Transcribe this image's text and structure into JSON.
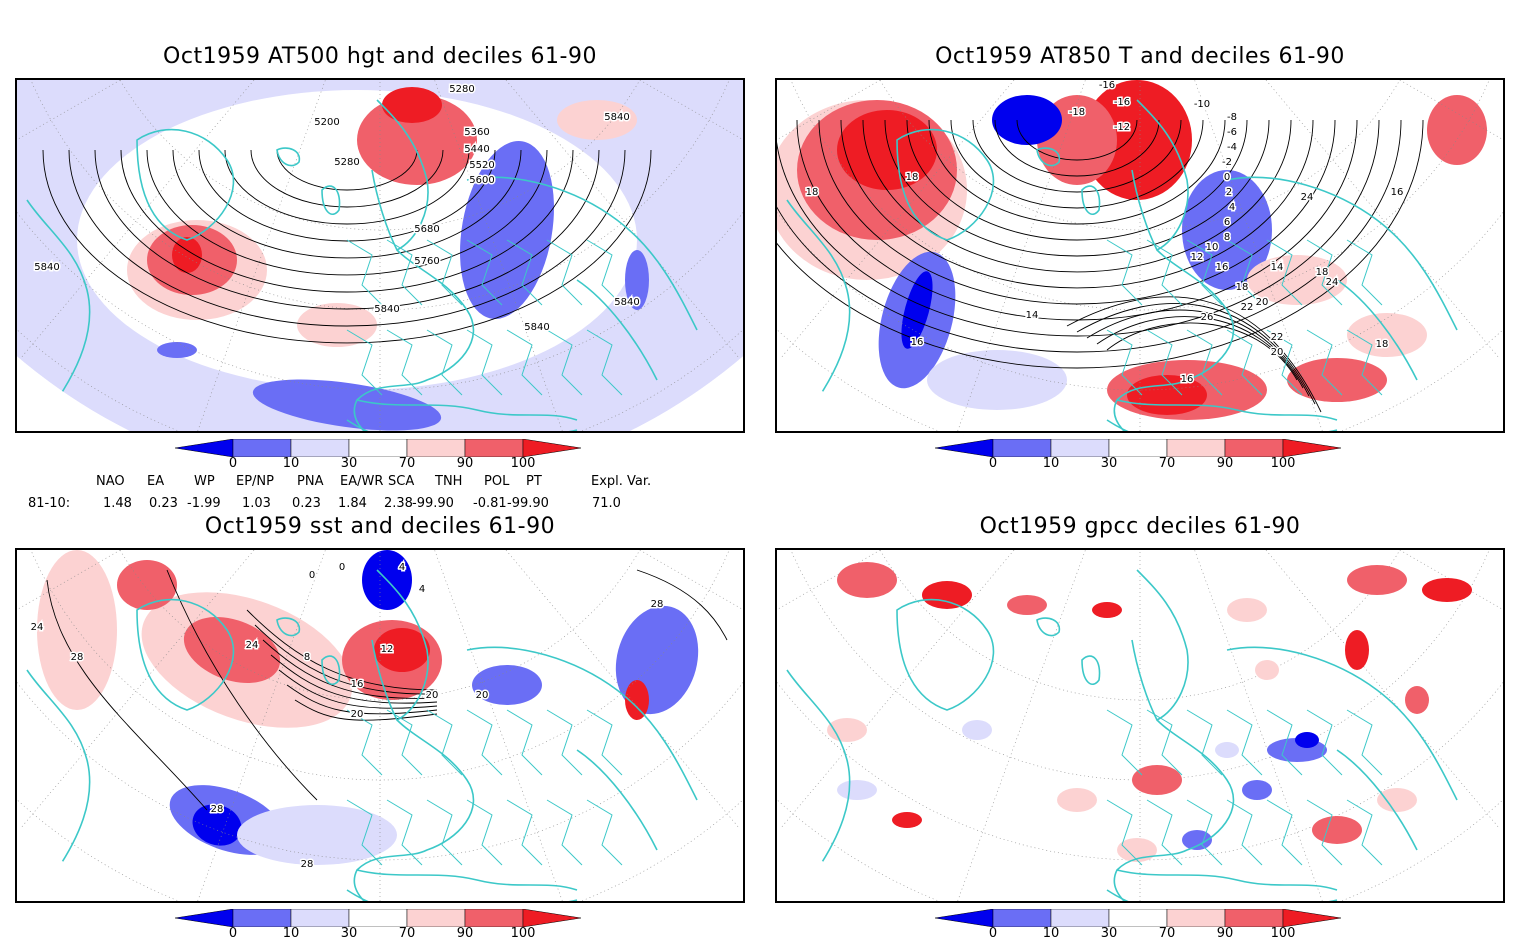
{
  "panels": [
    {
      "id": "top-left",
      "title": "Oct1959 AT500 hgt and deciles 61-90",
      "contour_labels": [
        "5280",
        "5200",
        "5280",
        "5360",
        "5440",
        "5520",
        "5600",
        "5680",
        "5760",
        "5840",
        "5840",
        "5840",
        "5840",
        "5840"
      ]
    },
    {
      "id": "top-right",
      "title": "Oct1959 AT850 T and deciles 61-90",
      "contour_labels": [
        "-16",
        "-18",
        "-16",
        "-12",
        "-10",
        "-8",
        "-6",
        "-4",
        "-2",
        "0",
        "2",
        "4",
        "6",
        "8",
        "10",
        "12",
        "14",
        "16",
        "18",
        "20",
        "22",
        "24",
        "26",
        "14",
        "14",
        "16",
        "18",
        "18",
        "16",
        "18",
        "20",
        "22",
        "24",
        "18",
        "16"
      ]
    },
    {
      "id": "bottom-left",
      "title": "Oct1959 sst and deciles 61-90",
      "contour_labels": [
        "0",
        "0",
        "4",
        "8",
        "12",
        "16",
        "20",
        "20",
        "24",
        "28",
        "28",
        "28",
        "28",
        "24",
        "4",
        "20"
      ]
    },
    {
      "id": "bottom-right",
      "title": "Oct1959 gpcc deciles 61-90",
      "contour_labels": []
    }
  ],
  "colorbar": {
    "labels": [
      "0",
      "10",
      "30",
      "70",
      "90",
      "100"
    ],
    "colors": [
      "#0000ee",
      "#6a6ef5",
      "#dcdcfc",
      "#ffffff",
      "#fcd2d2",
      "#f0606a",
      "#ee1c24"
    ]
  },
  "index_table": {
    "headers": [
      "NAO",
      "EA",
      "WP",
      "EP/NP",
      "PNA",
      "EA/WR",
      "SCA",
      "TNH",
      "POL",
      "PT",
      "Expl. Var."
    ],
    "row_label": "81-10:",
    "values": [
      "1.48",
      "0.23",
      "-1.99",
      "1.03",
      "0.23",
      "1.84",
      "2.38",
      "-99.90",
      "-0.81",
      "-99.90",
      "71.0"
    ]
  },
  "style": {
    "coast_color": "#3cc8c8",
    "grid_color": "#888888"
  }
}
